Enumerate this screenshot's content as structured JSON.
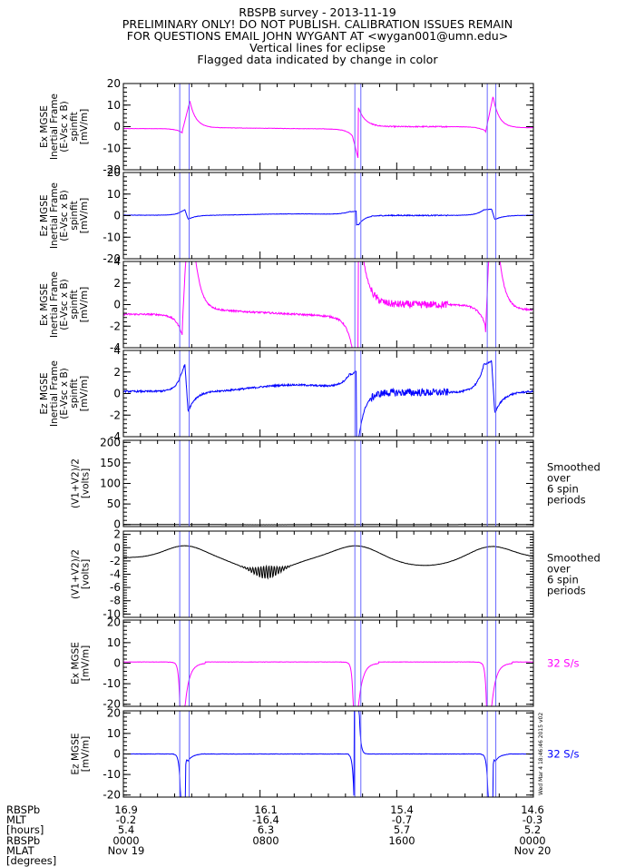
{
  "header": {
    "line1": "RBSPB survey - 2013-11-19",
    "line2": "PRELIMINARY ONLY! DO NOT PUBLISH. CALIBRATION ISSUES REMAIN",
    "line3": "FOR QUESTIONS EMAIL JOHN WYGANT AT <wygan001@umn.edu>",
    "line4": "Vertical lines for eclipse",
    "line5": "Flagged data indicated by change in color"
  },
  "colors": {
    "magenta": "#ff00ff",
    "blue": "#0000ff",
    "black": "#000000",
    "eclipse": "#6666ff"
  },
  "eclipse_hours": [
    [
      3.3,
      3.85
    ],
    [
      13.55,
      13.9
    ],
    [
      21.3,
      21.8
    ]
  ],
  "panels": [
    {
      "id": "ex-wide",
      "ylabel": [
        "Ex MGSE",
        "Inertial Frame",
        "(E-Vsc x B)",
        "spinfit",
        "[mV/m]"
      ],
      "ylim": [
        -20,
        20
      ],
      "ticks": [
        20,
        10,
        0,
        -10,
        -20
      ],
      "color": "#ff00ff",
      "series": "ex",
      "side_note": []
    },
    {
      "id": "ez-wide",
      "ylabel": [
        "Ez MGSE",
        "Inertial Frame",
        "(E-Vsc x B)",
        "spinfit",
        "[mV/m]"
      ],
      "ylim": [
        -20,
        20
      ],
      "ticks": [
        20,
        10,
        0,
        -10,
        -20
      ],
      "color": "#0000ff",
      "series": "ez",
      "side_note": []
    },
    {
      "id": "ex-zoom",
      "ylabel": [
        "Ex MGSE",
        "Inertial Frame",
        "(E-Vsc x B)",
        "spinfit",
        "[mV/m]"
      ],
      "ylim": [
        -4,
        4
      ],
      "ticks": [
        4,
        2,
        0,
        -2,
        -4
      ],
      "color": "#ff00ff",
      "series": "ex",
      "side_note": []
    },
    {
      "id": "ez-zoom",
      "ylabel": [
        "Ez MGSE",
        "Inertial Frame",
        "(E-Vsc x B)",
        "spinfit",
        "[mV/m]"
      ],
      "ylim": [
        -4,
        4
      ],
      "ticks": [
        4,
        2,
        0,
        -2,
        -4
      ],
      "color": "#0000ff",
      "series": "ez",
      "side_note": []
    },
    {
      "id": "vsc-wide",
      "ylabel": [
        "(V1+V2)/2",
        "[volts]"
      ],
      "ylim": [
        -5,
        205
      ],
      "ticks": [
        200,
        150,
        100,
        50,
        0
      ],
      "color": "#000000",
      "series": "vsc",
      "side_note": [
        "Smoothed",
        "over",
        "6 spin",
        "periods"
      ]
    },
    {
      "id": "vsc-zoom",
      "ylabel": [
        "(V1+V2)/2",
        "[volts]"
      ],
      "ylim": [
        -10.5,
        2.5
      ],
      "ticks": [
        2,
        0,
        -2,
        -4,
        -6,
        -8,
        -10
      ],
      "color": "#000000",
      "series": "vsc",
      "side_note": [
        "Smoothed",
        "over",
        "6 spin",
        "periods"
      ]
    },
    {
      "id": "ex-32",
      "ylabel": [
        "Ex MGSE",
        "[mV/m]"
      ],
      "ylim": [
        -21,
        21
      ],
      "ticks": [
        20,
        10,
        0,
        -10,
        -20
      ],
      "color": "#ff00ff",
      "series": "ex32",
      "side_note": [
        "32 S/s"
      ]
    },
    {
      "id": "ez-32",
      "ylabel": [
        "Ez MGSE",
        "[mV/m]"
      ],
      "ylim": [
        -21,
        21
      ],
      "ticks": [
        20,
        10,
        0,
        -10,
        -20
      ],
      "color": "#0000ff",
      "series": "ez32",
      "side_note": [
        "32 S/s"
      ],
      "stamp": "Wed Mar 4 18:46:46 2015 v02"
    }
  ],
  "footer": {
    "row_labels": [
      "RBSPb",
      "MLT",
      "[hours]",
      "RBSPb",
      "MLAT",
      "[degrees]"
    ],
    "columns": [
      {
        "lines": [
          "16.9",
          "-0.2",
          "5.4",
          "0000",
          "Nov 19"
        ]
      },
      {
        "lines": [
          "16.1",
          "-16.4",
          "6.3",
          "0800",
          ""
        ]
      },
      {
        "lines": [
          "15.4",
          "-0.7",
          "5.7",
          "1600",
          ""
        ]
      },
      {
        "lines": [
          "14.6",
          "-0.3",
          "5.2",
          "0000",
          "Nov 20"
        ]
      }
    ]
  },
  "chart_data": {
    "type": "line",
    "title": "RBSPB survey - 2013-11-19",
    "x": {
      "label": "",
      "range_hours": [
        0,
        24
      ],
      "ticks": [
        "0000",
        "0800",
        "1600",
        "0000"
      ]
    },
    "series": [
      {
        "name": "Ex MGSE",
        "x_hours": [
          0,
          2,
          3.2,
          3.6,
          3.9,
          5,
          8,
          11,
          13,
          13.6,
          13.8,
          14.5,
          17,
          19,
          21,
          21.5,
          21.8,
          23,
          24
        ],
        "values": [
          -0.5,
          -0.8,
          -1.8,
          12,
          3,
          -0.4,
          -0.6,
          -1.0,
          -2.5,
          -15,
          9,
          0,
          0,
          -0.5,
          -2.5,
          14,
          3,
          -0.5,
          -0.5
        ]
      },
      {
        "name": "Ez MGSE",
        "x_hours": [
          0,
          3.2,
          3.5,
          3.7,
          4,
          8,
          13,
          13.6,
          13.7,
          14.5,
          21,
          21.4,
          21.7,
          22.5,
          24
        ],
        "values": [
          0.2,
          0.5,
          2.5,
          -1.5,
          0,
          0.2,
          1.5,
          2,
          -4,
          0,
          1,
          2.8,
          -2,
          0,
          0.2
        ]
      },
      {
        "name": "(V1+V2)/2",
        "x_hours": [
          0,
          3.5,
          6,
          8,
          10,
          13.6,
          17,
          21.5,
          24
        ],
        "values": [
          -1.5,
          0.3,
          -1.5,
          -3.5,
          -1.5,
          0.4,
          -2.5,
          0.3,
          -1.5
        ]
      }
    ],
    "annotations": [
      "Vertical lines for eclipse",
      "Smoothed over 6 spin periods",
      "32 S/s"
    ]
  }
}
